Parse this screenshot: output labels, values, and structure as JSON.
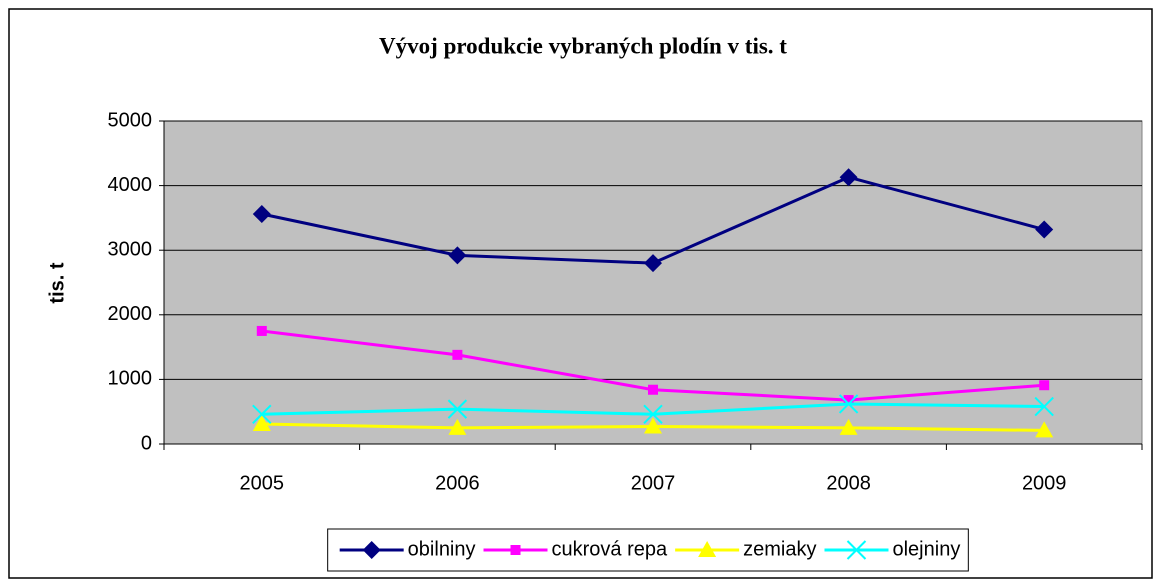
{
  "chart_data": {
    "type": "line",
    "title": "Vývoj produkcie vybraných plodín v tis. t",
    "y_label": "tis. t",
    "categories": [
      "2005",
      "2006",
      "2007",
      "2008",
      "2009"
    ],
    "series": [
      {
        "name": "obilniny",
        "color": "#000080",
        "marker": "diamond",
        "values": [
          3560,
          2920,
          2800,
          4130,
          3320
        ]
      },
      {
        "name": "cukrová repa",
        "color": "#ff00ff",
        "marker": "square",
        "values": [
          1750,
          1380,
          840,
          680,
          910
        ]
      },
      {
        "name": "zemiaky",
        "color": "#ffff00",
        "marker": "triangle",
        "values": [
          310,
          250,
          270,
          250,
          210
        ]
      },
      {
        "name": "olejniny",
        "color": "#00ffff",
        "marker": "x",
        "values": [
          460,
          540,
          460,
          620,
          580
        ]
      }
    ],
    "ylim": [
      0,
      5000
    ],
    "yticks": [
      0,
      1000,
      2000,
      3000,
      4000,
      5000
    ],
    "grid": true,
    "legend": "bottom",
    "plot_background": "#c0c0c0"
  }
}
